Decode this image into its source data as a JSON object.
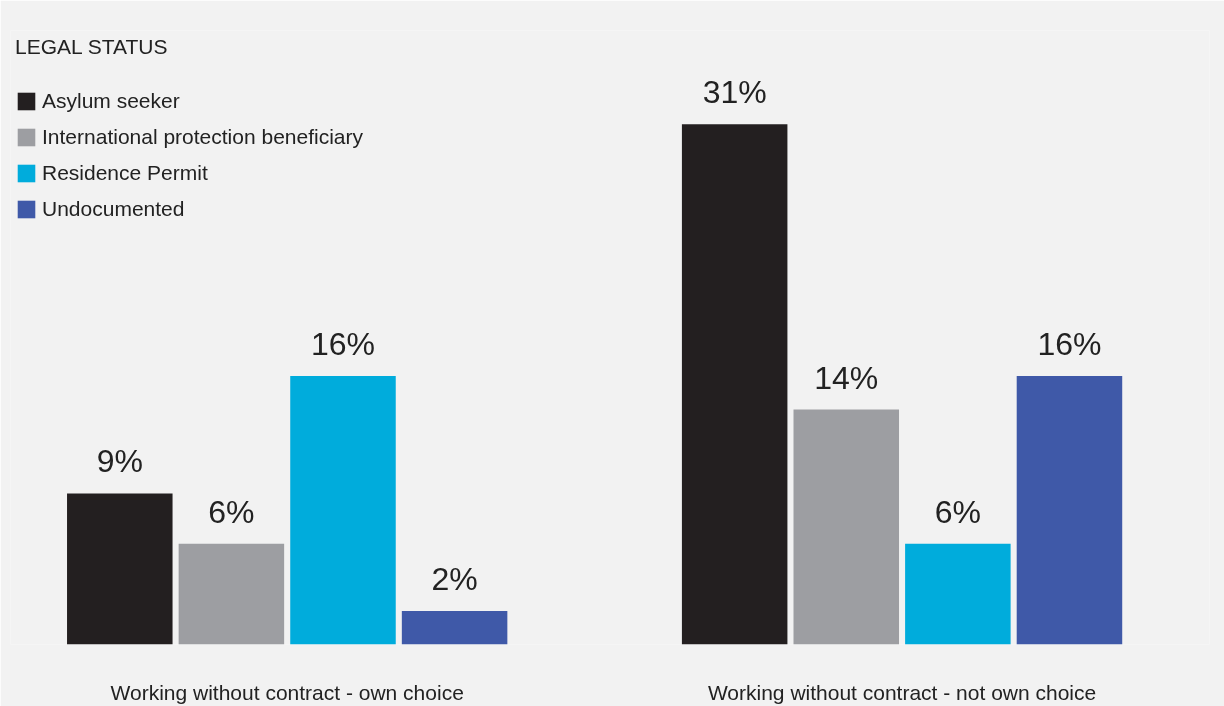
{
  "chart_data": {
    "type": "bar",
    "legend_title": "LEGAL STATUS",
    "categories": [
      "Working without contract - own choice",
      "Working without contract - not own choice"
    ],
    "series": [
      {
        "name": "Asylum seeker",
        "color": "#231f20",
        "values": [
          9,
          31
        ],
        "value_labels": [
          "9%",
          "31%"
        ]
      },
      {
        "name": "International protection beneficiary",
        "color": "#9d9ea2",
        "values": [
          6,
          14
        ],
        "value_labels": [
          "6%",
          "14%"
        ]
      },
      {
        "name": "Residence Permit",
        "color": "#00acdc",
        "values": [
          16,
          6
        ],
        "value_labels": [
          "16%",
          "6%"
        ]
      },
      {
        "name": "Undocumented",
        "color": "#3f59a8",
        "values": [
          2,
          16
        ],
        "value_labels": [
          "2%",
          "16%"
        ]
      }
    ],
    "grid": false,
    "legend": "top left",
    "tick_labels": "x"
  }
}
